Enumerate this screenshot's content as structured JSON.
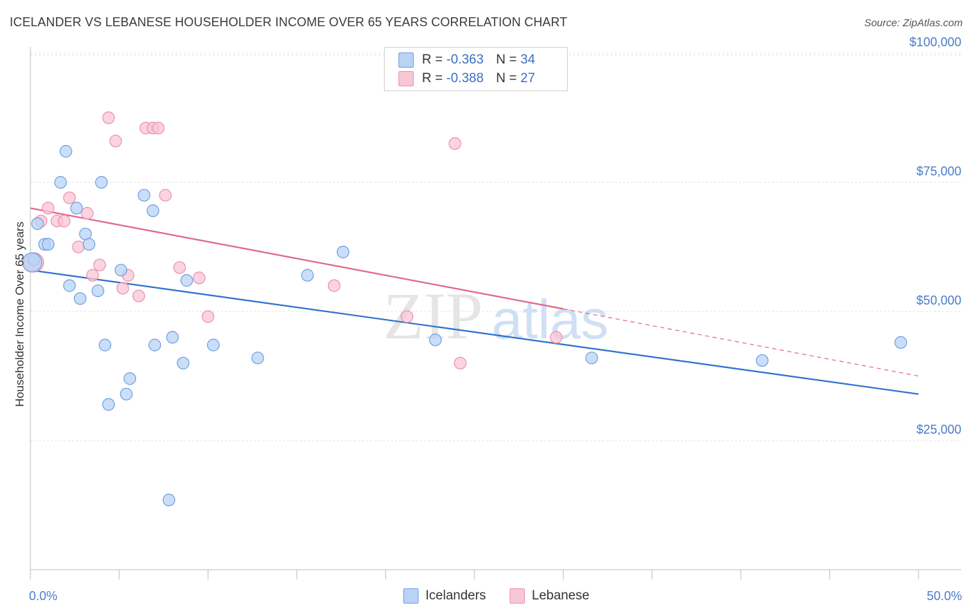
{
  "title": "ICELANDER VS LEBANESE HOUSEHOLDER INCOME OVER 65 YEARS CORRELATION CHART",
  "source": "Source: ZipAtlas.com",
  "watermark": {
    "zip": "ZIP",
    "atlas": "atlas"
  },
  "legend": {
    "icelanders": {
      "r_label": "R =",
      "r_value": "-0.363",
      "n_label": "N =",
      "n_value": "34"
    },
    "lebanese": {
      "r_label": "R =",
      "r_value": "-0.388",
      "n_label": "N =",
      "n_value": "27"
    }
  },
  "colors": {
    "icelanders_fill": "#b9d3f5",
    "icelanders_stroke": "#6e9fe0",
    "icelanders_line": "#2f72cf",
    "lebanese_fill": "#f9c6d6",
    "lebanese_stroke": "#ea90ae",
    "lebanese_line": "#e0668f"
  },
  "chart_data": {
    "type": "scatter",
    "title": "ICELANDER VS LEBANESE HOUSEHOLDER INCOME OVER 65 YEARS CORRELATION CHART",
    "xlabel": "",
    "ylabel": "Householder Income Over 65 years",
    "xlim": [
      0,
      50
    ],
    "ylim": [
      0,
      105000
    ],
    "x_tick_labels": [
      "0.0%",
      "50.0%"
    ],
    "y_ticks": [
      25000,
      50000,
      75000,
      100000
    ],
    "y_tick_labels": [
      "$25,000",
      "$50,000",
      "$75,000",
      "$100,000"
    ],
    "series": [
      {
        "name": "Icelanders",
        "points": [
          [
            0.2,
            60000
          ],
          [
            0.4,
            67000
          ],
          [
            0.8,
            63000
          ],
          [
            1.0,
            63000
          ],
          [
            1.7,
            75000
          ],
          [
            2.0,
            81000
          ],
          [
            2.2,
            55000
          ],
          [
            2.6,
            70000
          ],
          [
            2.8,
            52500
          ],
          [
            3.1,
            65000
          ],
          [
            3.3,
            63000
          ],
          [
            3.8,
            54000
          ],
          [
            4.0,
            75000
          ],
          [
            4.2,
            43500
          ],
          [
            4.4,
            32000
          ],
          [
            5.1,
            58000
          ],
          [
            5.4,
            34000
          ],
          [
            5.6,
            37000
          ],
          [
            6.4,
            72500
          ],
          [
            6.9,
            69500
          ],
          [
            7.0,
            43500
          ],
          [
            7.8,
            13500
          ],
          [
            8.0,
            45000
          ],
          [
            8.6,
            40000
          ],
          [
            8.8,
            56000
          ],
          [
            10.3,
            43500
          ],
          [
            12.8,
            41000
          ],
          [
            15.6,
            57000
          ],
          [
            17.6,
            61500
          ],
          [
            22.8,
            44500
          ],
          [
            31.6,
            41000
          ],
          [
            41.2,
            40500
          ],
          [
            49.0,
            44000
          ],
          [
            0.1,
            59500
          ]
        ],
        "trend": {
          "x": [
            0,
            50
          ],
          "y": [
            58000,
            34000
          ]
        }
      },
      {
        "name": "Lebanese",
        "points": [
          [
            0.2,
            59500
          ],
          [
            0.6,
            67500
          ],
          [
            1.0,
            70000
          ],
          [
            1.5,
            67500
          ],
          [
            1.9,
            67500
          ],
          [
            2.2,
            72000
          ],
          [
            2.7,
            62500
          ],
          [
            3.2,
            69000
          ],
          [
            3.5,
            57000
          ],
          [
            3.9,
            59000
          ],
          [
            4.4,
            87500
          ],
          [
            4.8,
            83000
          ],
          [
            5.2,
            54500
          ],
          [
            5.5,
            57000
          ],
          [
            6.1,
            53000
          ],
          [
            6.5,
            85500
          ],
          [
            6.9,
            85500
          ],
          [
            7.2,
            85500
          ],
          [
            7.6,
            72500
          ],
          [
            8.4,
            58500
          ],
          [
            9.5,
            56500
          ],
          [
            10.0,
            49000
          ],
          [
            17.1,
            55000
          ],
          [
            21.2,
            49000
          ],
          [
            23.9,
            82500
          ],
          [
            24.2,
            40000
          ],
          [
            29.6,
            45000
          ]
        ],
        "trend": {
          "x": [
            0,
            30
          ],
          "y": [
            70000,
            50500
          ]
        },
        "trend_dashed": {
          "x": [
            30,
            50
          ],
          "y": [
            50500,
            37500
          ]
        }
      }
    ],
    "legend": [
      "Icelanders",
      "Lebanese"
    ]
  }
}
